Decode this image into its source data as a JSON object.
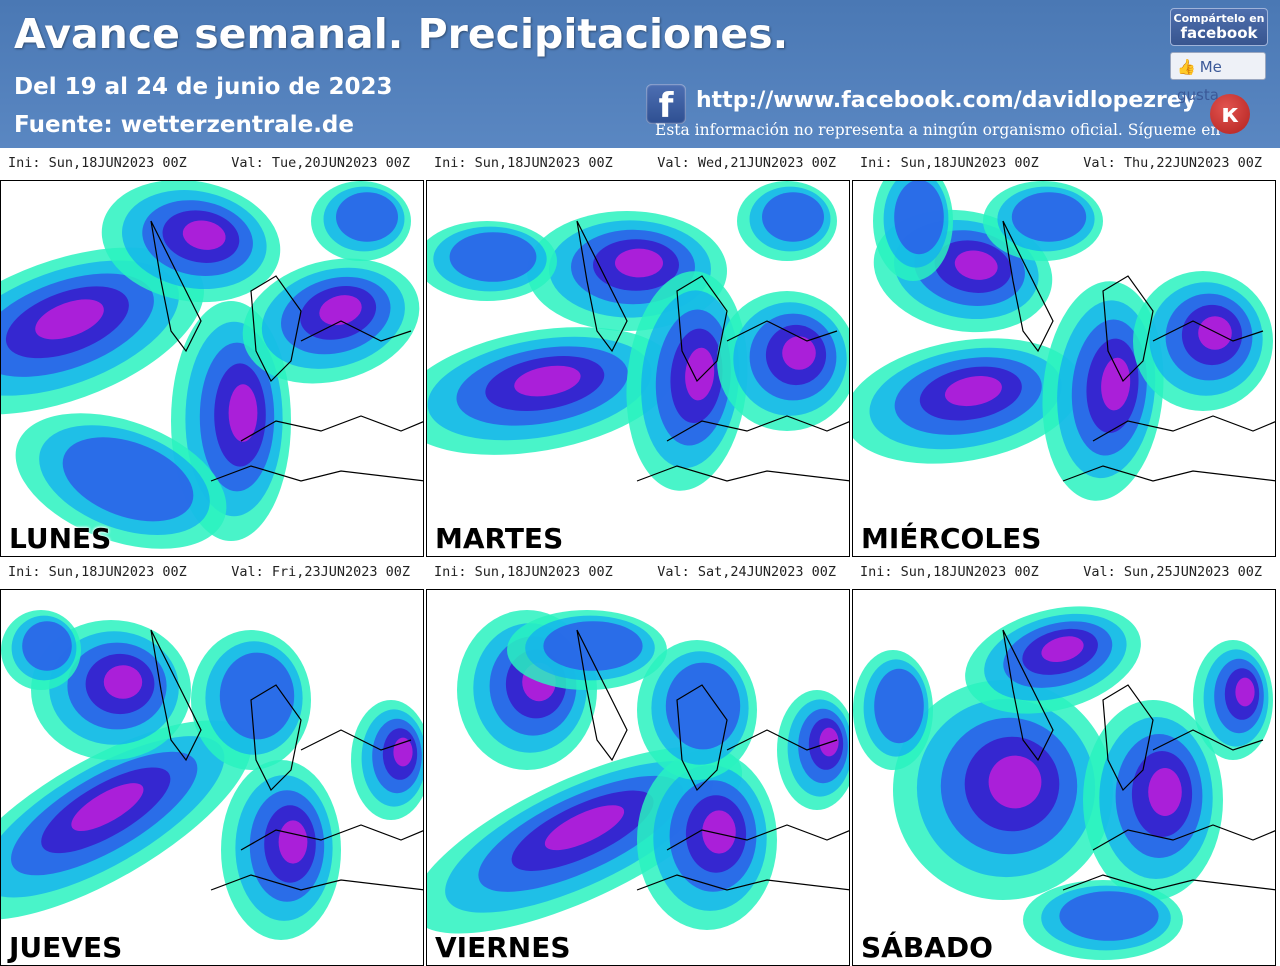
{
  "header": {
    "title": "Avance semanal. Precipitaciones.",
    "dates": "Del 19 al 24 de junio de 2023",
    "source": "Fuente: wetterzentrale.de",
    "facebook_url": "http://www.facebook.com/davidlopezrey",
    "disclaimer": "Esta información no representa a ningún organismo oficial. Sígueme en",
    "share_line1": "Compártelo en",
    "share_line2": "facebook",
    "like_label": "Me gusta",
    "fb_icon": "facebook-icon",
    "logo_icon": "author-logo-icon"
  },
  "colors": {
    "header_bg": "#5082c0",
    "precip_light": "#29f2c0",
    "precip_mid": "#12aef0",
    "precip_strong": "#2f52e8",
    "precip_heavy": "#3a10c8",
    "precip_extreme": "#d21edc"
  },
  "panels": [
    {
      "ini": "Ini: Sun,18JUN2023 00Z",
      "val": "Val: Tue,20JUN2023 00Z",
      "day": "LUNES"
    },
    {
      "ini": "Ini: Sun,18JUN2023 00Z",
      "val": "Val: Wed,21JUN2023 00Z",
      "day": "MARTES"
    },
    {
      "ini": "Ini: Sun,18JUN2023 00Z",
      "val": "Val: Thu,22JUN2023 00Z",
      "day": "MIÉRCOLES"
    },
    {
      "ini": "Ini: Sun,18JUN2023 00Z",
      "val": "Val: Fri,23JUN2023 00Z",
      "day": "JUEVES"
    },
    {
      "ini": "Ini: Sun,18JUN2023 00Z",
      "val": "Val: Sat,24JUN2023 00Z",
      "day": "VIERNES"
    },
    {
      "ini": "Ini: Sun,18JUN2023 00Z",
      "val": "Val: Sun,25JUN2023 00Z",
      "day": "SÁBADO"
    }
  ]
}
